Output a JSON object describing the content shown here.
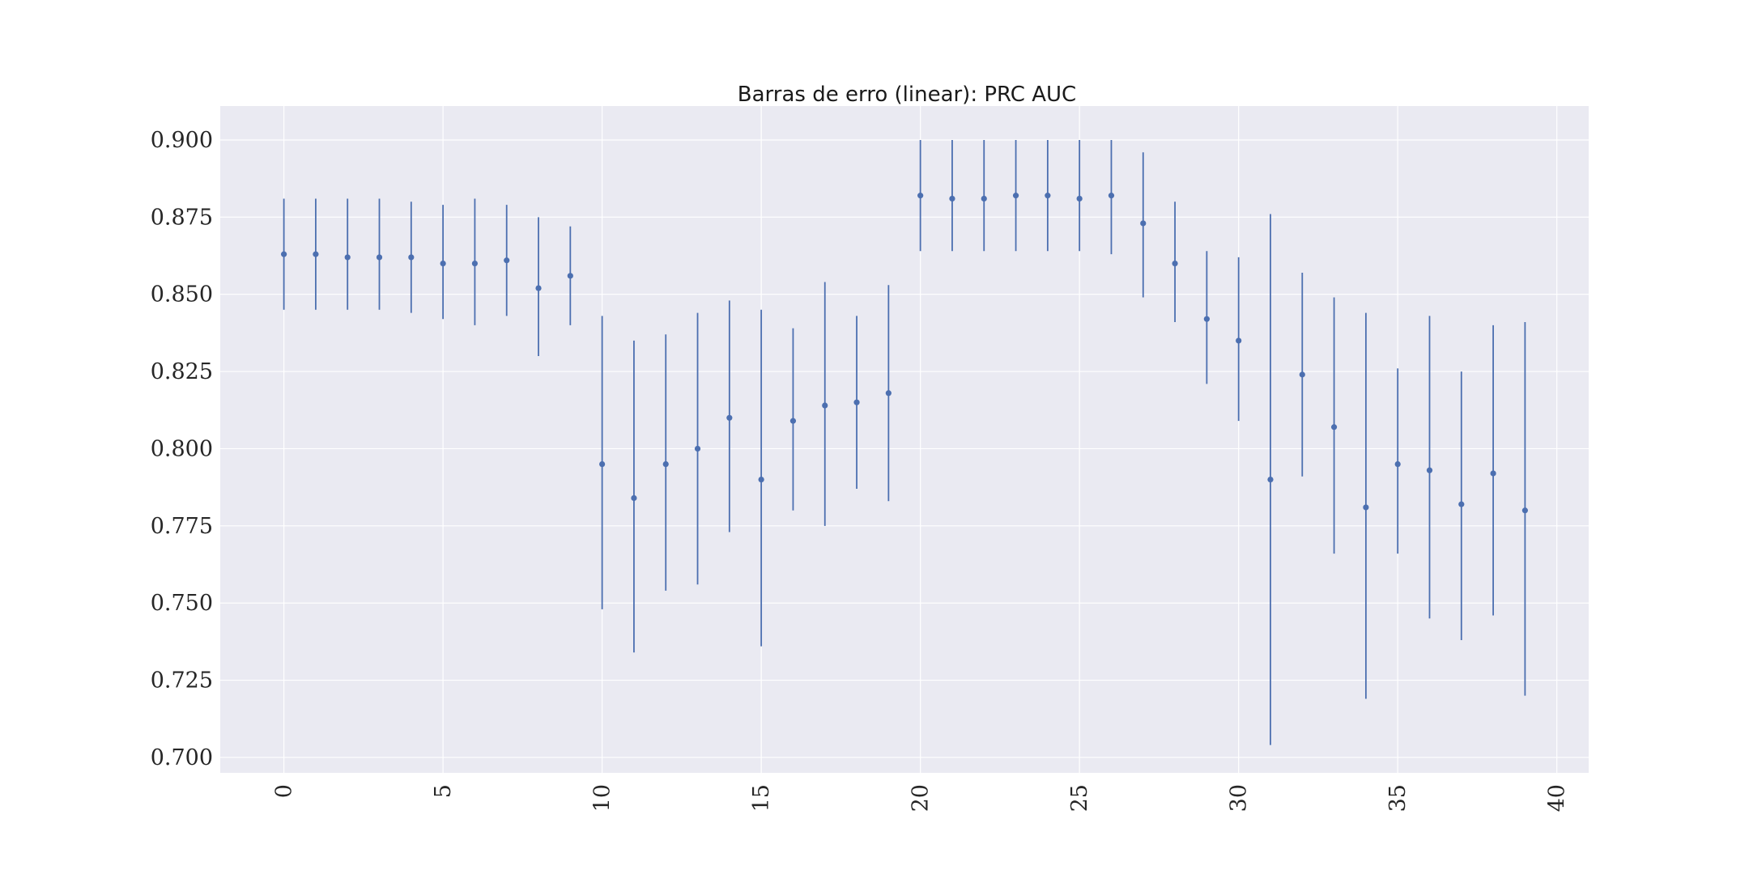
{
  "chart_data": {
    "type": "errorbar",
    "title": "Barras de erro (linear): PRC AUC",
    "xlabel": "",
    "ylabel": "",
    "xlim": [
      -2,
      41
    ],
    "ylim": [
      0.695,
      0.911
    ],
    "x_ticks": [
      "0",
      "5",
      "10",
      "15",
      "20",
      "25",
      "30",
      "35",
      "40"
    ],
    "y_ticks": [
      "0.700",
      "0.725",
      "0.750",
      "0.775",
      "0.800",
      "0.825",
      "0.850",
      "0.875",
      "0.900"
    ],
    "grid": true,
    "legend": "none",
    "color": "#4c6fb0",
    "background": "#eaeaf2",
    "x": [
      0,
      1,
      2,
      3,
      4,
      5,
      6,
      7,
      8,
      9,
      10,
      11,
      12,
      13,
      14,
      15,
      16,
      17,
      18,
      19,
      20,
      21,
      22,
      23,
      24,
      25,
      26,
      27,
      28,
      29,
      30,
      31,
      32,
      33,
      34,
      35,
      36,
      37,
      38,
      39
    ],
    "y": [
      0.863,
      0.863,
      0.862,
      0.862,
      0.862,
      0.86,
      0.86,
      0.861,
      0.852,
      0.856,
      0.795,
      0.784,
      0.795,
      0.8,
      0.81,
      0.79,
      0.809,
      0.814,
      0.815,
      0.818,
      0.882,
      0.881,
      0.881,
      0.882,
      0.882,
      0.881,
      0.882,
      0.873,
      0.86,
      0.842,
      0.835,
      0.79,
      0.824,
      0.807,
      0.781,
      0.795,
      0.793,
      0.782,
      0.792,
      0.78
    ],
    "y_lower": [
      0.845,
      0.845,
      0.845,
      0.845,
      0.844,
      0.842,
      0.84,
      0.843,
      0.83,
      0.84,
      0.748,
      0.734,
      0.754,
      0.756,
      0.773,
      0.736,
      0.78,
      0.775,
      0.787,
      0.783,
      0.864,
      0.864,
      0.864,
      0.864,
      0.864,
      0.864,
      0.863,
      0.849,
      0.841,
      0.821,
      0.809,
      0.704,
      0.791,
      0.766,
      0.719,
      0.766,
      0.745,
      0.738,
      0.746,
      0.72
    ],
    "y_upper": [
      0.881,
      0.881,
      0.881,
      0.881,
      0.88,
      0.879,
      0.881,
      0.879,
      0.875,
      0.872,
      0.843,
      0.835,
      0.837,
      0.844,
      0.848,
      0.845,
      0.839,
      0.854,
      0.843,
      0.853,
      0.9,
      0.9,
      0.9,
      0.9,
      0.9,
      0.9,
      0.9,
      0.896,
      0.88,
      0.864,
      0.862,
      0.876,
      0.857,
      0.849,
      0.844,
      0.826,
      0.843,
      0.825,
      0.84,
      0.841
    ]
  }
}
